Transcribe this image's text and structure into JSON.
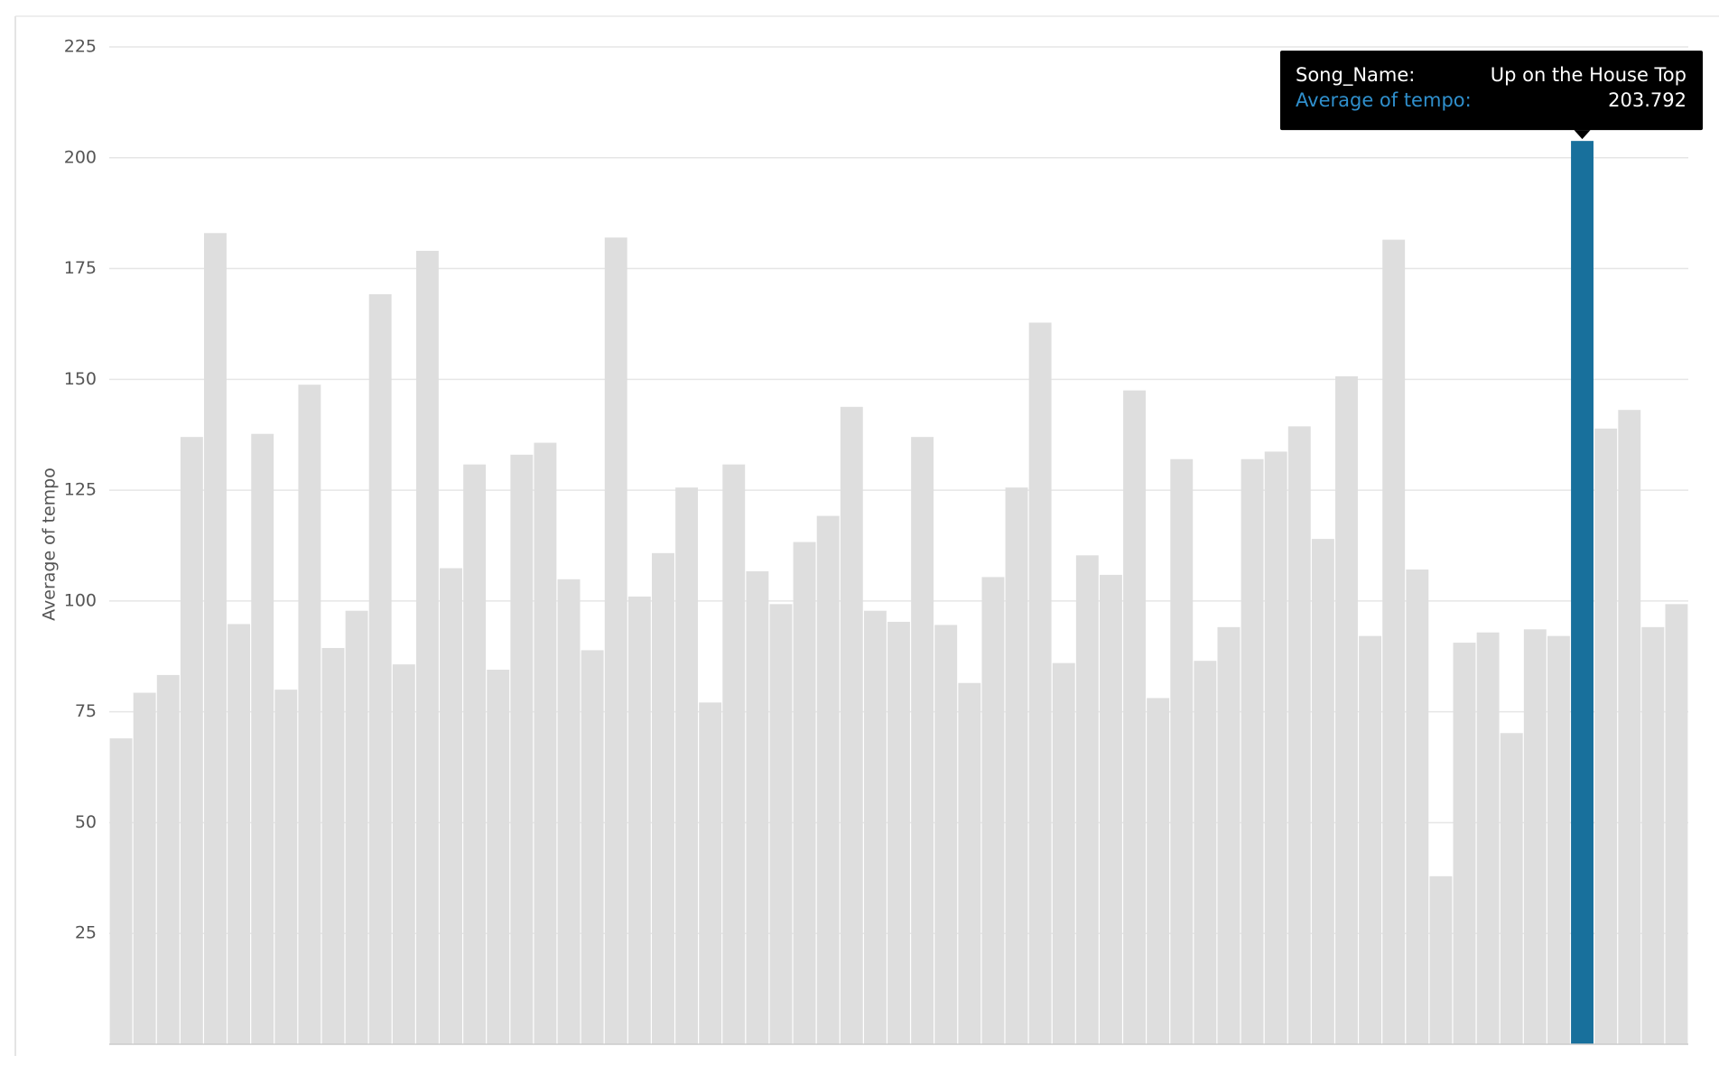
{
  "chart_data": {
    "type": "bar",
    "y_label": "Average of tempo",
    "categories": [
      null,
      null,
      null,
      null,
      null,
      null,
      null,
      null,
      null,
      null,
      null,
      null,
      null,
      null,
      null,
      null,
      null,
      null,
      null,
      null,
      null,
      null,
      null,
      null,
      null,
      null,
      null,
      null,
      null,
      null,
      null,
      null,
      null,
      null,
      null,
      null,
      null,
      null,
      null,
      null,
      null,
      null,
      null,
      null,
      null,
      null,
      null,
      null,
      null,
      null,
      null,
      null,
      null,
      null,
      null,
      null,
      null,
      null,
      null,
      null,
      null,
      null,
      "Up on the House Top",
      null,
      null,
      null,
      null
    ],
    "values": [
      69,
      79.3,
      83.3,
      137,
      183,
      94.8,
      137.7,
      80,
      148.8,
      89.4,
      97.8,
      169.2,
      85.7,
      179,
      107.4,
      130.8,
      84.5,
      133,
      135.7,
      104.9,
      88.9,
      182,
      101,
      110.8,
      125.6,
      77.1,
      130.8,
      106.7,
      99.3,
      113.3,
      119.2,
      143.8,
      97.8,
      95.3,
      137,
      94.6,
      81.5,
      105.4,
      125.6,
      162.8,
      86,
      110.3,
      105.9,
      147.5,
      78.1,
      132,
      86.5,
      94.1,
      132,
      133.7,
      139.4,
      114,
      150.7,
      92.1,
      181.5,
      107.1,
      37.9,
      90.6,
      92.9,
      70.2,
      93.6,
      92.1,
      203.792,
      138.9,
      143.1,
      94.1,
      99.3
    ],
    "color": "#dedede",
    "highlight_color": "#18709c",
    "ylim": [
      0,
      225
    ],
    "yticks": [
      25,
      50,
      75,
      100,
      125,
      150,
      175,
      200,
      225
    ],
    "grid": true,
    "tooltip": {
      "name_label": "Song_Name:",
      "value_label": "Average of tempo:"
    }
  }
}
